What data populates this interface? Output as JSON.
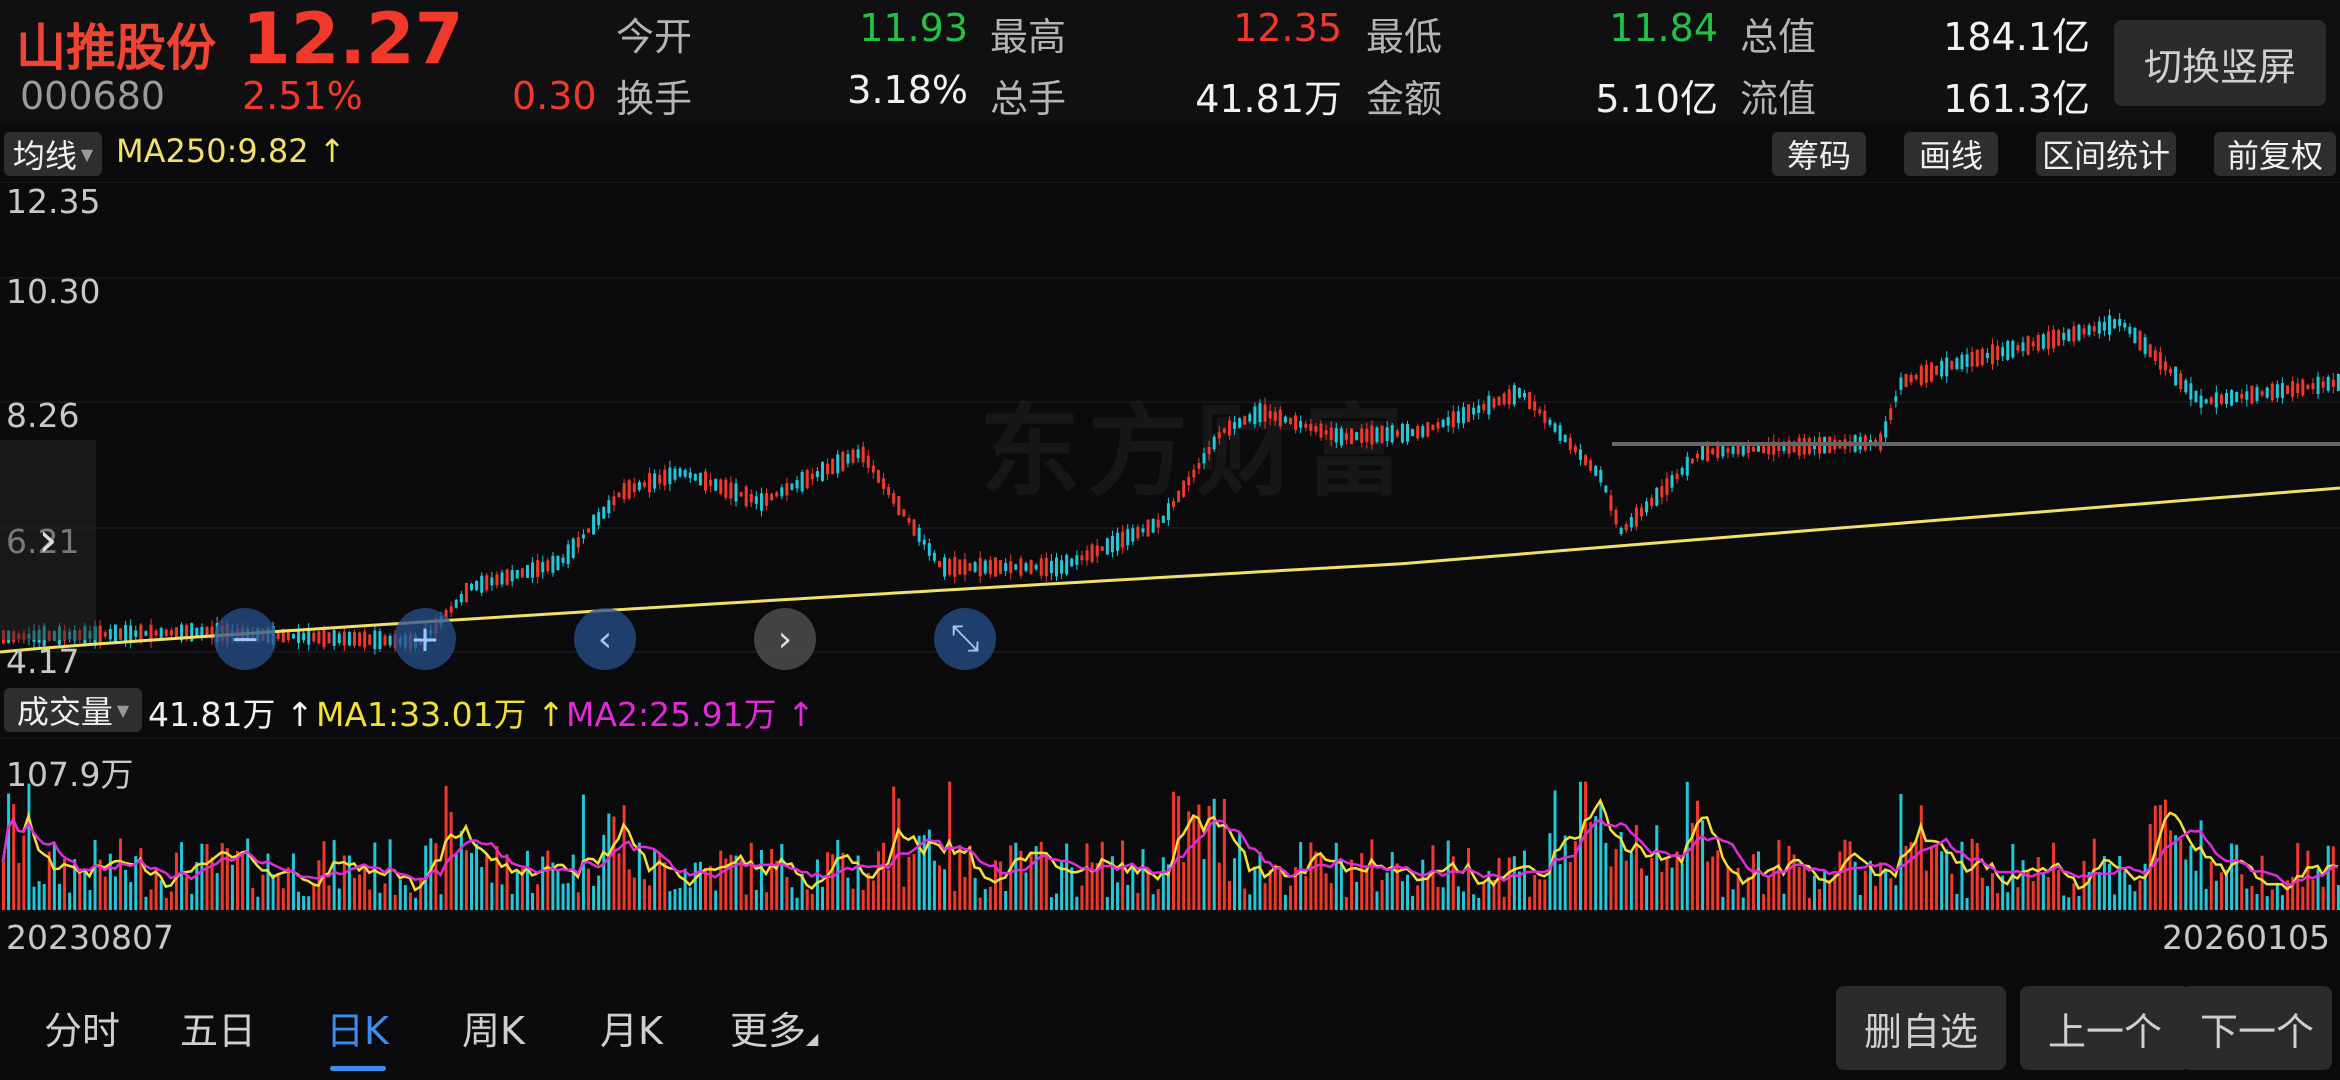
{
  "stock": {
    "name": "山推股份",
    "code": "000680",
    "price": "12.27",
    "change_pct": "2.51%",
    "change": "0.30"
  },
  "quote": [
    {
      "label": "今开",
      "value": "11.93",
      "color": "green"
    },
    {
      "label": "最高",
      "value": "12.35",
      "color": "red"
    },
    {
      "label": "最低",
      "value": "11.84",
      "color": "green"
    },
    {
      "label": "总值",
      "value": "184.1亿",
      "color": "white"
    },
    {
      "label": "换手",
      "value": "3.18%",
      "color": "white"
    },
    {
      "label": "总手",
      "value": "41.81万",
      "color": "white"
    },
    {
      "label": "金额",
      "value": "5.10亿",
      "color": "white"
    },
    {
      "label": "流值",
      "value": "161.3亿",
      "color": "white"
    }
  ],
  "switch_button": "切换竖屏",
  "indicator": {
    "selector": "均线",
    "ma250": "MA250:9.82",
    "arrow": "↑",
    "buttons": [
      "筹码",
      "画线",
      "区间统计",
      "前复权"
    ]
  },
  "price_axis": [
    "12.35",
    "10.30",
    "8.26",
    "6.21",
    "4.17"
  ],
  "watermark": "东方财富",
  "volume": {
    "selector": "成交量",
    "value": "41.81万",
    "ma1": "MA1:33.01万",
    "ma2": "MA2:25.91万",
    "arrow": "↑",
    "axis_max": "107.9万"
  },
  "dates": {
    "start": "20230807",
    "end": "20260105"
  },
  "tabs": [
    "分时",
    "五日",
    "日K",
    "周K",
    "月K",
    "更多"
  ],
  "active_tab": "日K",
  "nav_buttons": [
    "删自选",
    "上一个",
    "下一个"
  ],
  "colors": {
    "up": "#f0382b",
    "down": "#22c7d8",
    "ma250": "#f1e06b",
    "ma1": "#f1e03b",
    "ma2": "#e02bd8",
    "active": "#3b8cf0"
  }
}
